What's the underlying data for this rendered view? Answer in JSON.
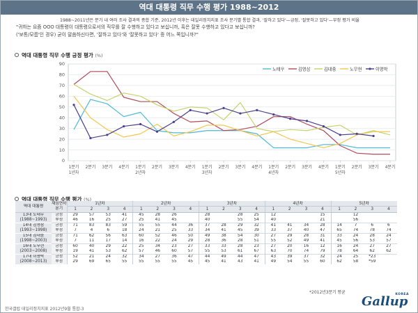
{
  "header": {
    "title": "역대 대통령 직무 수행 평가 1988~2012"
  },
  "subtitle": "1988~2011년은 분기 내 여러 조사 결과의 종합 기준, 2012년 이후는 데일리정치지표 조사 분기별 통합 결과, '잘하고 있다'—긍정, '잘못하고 있다'—부정 평가 비율",
  "questions": [
    "\"귀하는 요즘 OOO 대통령이 대통령으로서의 직무를 잘 수행하고 있다고 보십니까, 혹은 잘못 수행하고 있다고 보십니까?",
    "('보통/모름'인 경우) 굳이 말씀하신다면, '잘하고 있다'와 '잘못하고 있다' 중 어느 쪽입니까?\""
  ],
  "section1": {
    "title": "역대 대통령 직무 수행 긍정 평가",
    "unit": "(%)"
  },
  "section2": {
    "title": "역대 대통령 직무 수행 평가",
    "unit": "(%)"
  },
  "chart_data": {
    "type": "line",
    "x": [
      "1분기",
      "2분기",
      "3분기",
      "4분기",
      "1분기",
      "2분기",
      "3분기",
      "4분기",
      "1분기",
      "2분기",
      "3분기",
      "4분기",
      "1분기",
      "2분기",
      "3분기",
      "4분기",
      "1분기",
      "2분기",
      "3분기",
      "4분기"
    ],
    "x_year_labels": [
      {
        "index": 0,
        "label": "1년차"
      },
      {
        "index": 4,
        "label": "2년차"
      },
      {
        "index": 8,
        "label": "3년차"
      },
      {
        "index": 12,
        "label": "4년차"
      },
      {
        "index": 16,
        "label": "5년차"
      }
    ],
    "ylim": [
      0,
      90
    ],
    "yticks": [
      0,
      10,
      20,
      30,
      40,
      50,
      60,
      70,
      80,
      90
    ],
    "grid": true,
    "legend_position": "top-right",
    "series": [
      {
        "name": "노태우",
        "color": "#4bb8d8",
        "values": [
          29,
          57,
          53,
          41,
          45,
          28,
          26,
          26,
          28,
          28,
          28,
          25,
          12,
          12,
          12,
          15,
          15,
          12,
          12,
          12
        ]
      },
      {
        "name": "김영삼",
        "color": "#b04a5a",
        "values": [
          71,
          83,
          83,
          59,
          55,
          55,
          44,
          36,
          37,
          28,
          29,
          32,
          41,
          41,
          34,
          28,
          14,
          7,
          6,
          6
        ]
      },
      {
        "name": "김대중",
        "color": "#c6d26a",
        "values": [
          71,
          62,
          56,
          63,
          60,
          52,
          46,
          50,
          49,
          38,
          54,
          30,
          27,
          29,
          28,
          31,
          33,
          24,
          28,
          24
        ]
      },
      {
        "name": "노무현",
        "color": "#f3c64d",
        "values": [
          60,
          40,
          29,
          22,
          25,
          34,
          23,
          27,
          33,
          33,
          28,
          23,
          27,
          20,
          16,
          12,
          16,
          24,
          27,
          27
        ]
      },
      {
        "name": "이명박",
        "color": "#4a3f8c",
        "values": [
          52,
          21,
          24,
          32,
          34,
          27,
          36,
          47,
          44,
          49,
          44,
          47,
          43,
          39,
          37,
          32,
          24,
          25,
          23,
          null
        ]
      }
    ]
  },
  "table": {
    "header": {
      "president": "역대 대통령",
      "rating": "재임연차 분기",
      "years": [
        "1년차",
        "2년차",
        "3년차",
        "4년차",
        "5년차"
      ],
      "quarters": [
        "1",
        "2",
        "3",
        "4",
        "1",
        "2",
        "3",
        "4",
        "1",
        "2",
        "3",
        "4",
        "1",
        "2",
        "3",
        "4",
        "1",
        "2",
        "3",
        "4"
      ]
    },
    "pos_label": "긍정",
    "neg_label": "부정",
    "rows": [
      {
        "name": "13대 노태우",
        "term": "(1988~1993)",
        "pos": [
          "29",
          "57",
          "53",
          "41",
          "45",
          "28",
          "26",
          "",
          "28",
          "",
          "28",
          "25",
          "12",
          "",
          "",
          "15",
          "",
          "12",
          "",
          ""
        ],
        "neg": [
          "46",
          "16",
          "25",
          "27",
          "25",
          "41",
          "45",
          "",
          "40",
          "",
          "55",
          "54",
          "40",
          "",
          "",
          "21",
          "",
          "56",
          "",
          ""
        ]
      },
      {
        "name": "14대 김영삼",
        "term": "(1993~1998)",
        "pos": [
          "71",
          "83",
          "83",
          "59",
          "55",
          "55",
          "44",
          "36",
          "37",
          "28",
          "29",
          "32",
          "41",
          "41",
          "34",
          "28",
          "14",
          "7",
          "6",
          "6"
        ],
        "neg": [
          "7",
          "4",
          "6",
          "18",
          "24",
          "21",
          "25",
          "33",
          "34",
          "41",
          "45",
          "39",
          "33",
          "37",
          "40",
          "47",
          "65",
          "74",
          "78",
          "74"
        ]
      },
      {
        "name": "15대 김대중",
        "term": "(1998~2003)",
        "pos": [
          "71",
          "62",
          "56",
          "63",
          "60",
          "52",
          "46",
          "50",
          "49",
          "38",
          "54",
          "30",
          "27",
          "29",
          "28",
          "31",
          "33",
          "24",
          "28",
          "24"
        ],
        "neg": [
          "7",
          "11",
          "17",
          "14",
          "16",
          "22",
          "24",
          "29",
          "28",
          "36",
          "28",
          "51",
          "55",
          "52",
          "49",
          "41",
          "45",
          "56",
          "53",
          "57"
        ]
      },
      {
        "name": "16대 노무현",
        "term": "(2003~2008)",
        "pos": [
          "60",
          "40",
          "29",
          "22",
          "25",
          "34",
          "23",
          "27",
          "33",
          "33",
          "28",
          "23",
          "27",
          "20",
          "16",
          "12",
          "16",
          "24",
          "27",
          "27"
        ],
        "neg": [
          "19",
          "41",
          "53",
          "62",
          "57",
          "46",
          "60",
          "57",
          "55",
          "53",
          "61",
          "67",
          "63",
          "70",
          "74",
          "79",
          "78",
          "64",
          "62",
          "62"
        ]
      },
      {
        "name": "17대 이명박",
        "term": "(2008~2013)",
        "pos": [
          "52",
          "21",
          "24",
          "32",
          "34",
          "27",
          "36",
          "47",
          "44",
          "49",
          "44",
          "47",
          "43",
          "39",
          "37",
          "32",
          "24",
          "25",
          "*23",
          ""
        ],
        "neg": [
          "29",
          "69",
          "65",
          "55",
          "55",
          "55",
          "55",
          "45",
          "45",
          "41",
          "43",
          "41",
          "49",
          "54",
          "55",
          "60",
          "62",
          "58",
          "*59",
          ""
        ]
      }
    ]
  },
  "footnote": "*2012년3분기 평균",
  "source": "한국갤럽 데일리정치지표 2012년9월 통합-3",
  "logo": {
    "text": "Gallup",
    "sub": "KOREA"
  }
}
